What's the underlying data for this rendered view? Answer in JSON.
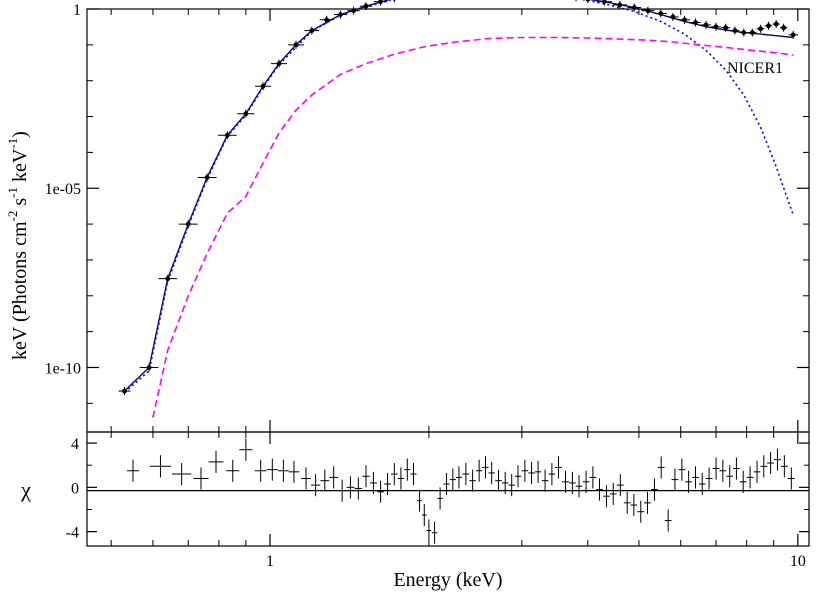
{
  "chart_data": [
    {
      "type": "scatter",
      "panel": "spectrum",
      "xscale": "log",
      "yscale": "log",
      "xlim": [
        0.45,
        10.5
      ],
      "ylim_log10": [
        -11.8,
        0
      ],
      "ylabel_main": "keV (Photons cm",
      "ylabel_exp1": "-2",
      "ylabel_s": " s",
      "ylabel_exp2": "-1",
      "ylabel_kev": " keV",
      "ylabel_exp3": "-1",
      "ylabel_close": ")",
      "yticks": [
        {
          "value": 1,
          "label": "1"
        },
        {
          "value": 1e-05,
          "label": "1e-05"
        },
        {
          "value": 1e-10,
          "label": "1e-10"
        }
      ],
      "annotation": "NICER1",
      "colors": {
        "data": "#000000",
        "model": "#0a0a6e",
        "comp_dotted": "#0000ff",
        "comp_dashed": "#ff00ff"
      },
      "series": [
        {
          "style": "data-with-errorbars",
          "points": [
            [
              0.53,
              2.2e-11
            ],
            [
              0.59,
              1e-10
            ],
            [
              0.64,
              3e-08
            ],
            [
              0.7,
              1e-06
            ],
            [
              0.76,
              2e-05
            ],
            [
              0.83,
              0.0003
            ],
            [
              0.9,
              0.0012
            ],
            [
              0.97,
              0.007
            ],
            [
              1.04,
              0.03
            ],
            [
              1.12,
              0.1
            ],
            [
              1.2,
              0.25
            ],
            [
              1.28,
              0.5
            ],
            [
              1.36,
              0.7
            ],
            [
              1.44,
              0.9
            ],
            [
              1.52,
              1.2
            ],
            [
              1.62,
              1.6
            ],
            [
              1.72,
              2.0
            ],
            [
              1.84,
              2.4
            ],
            [
              1.97,
              2.7
            ],
            [
              2.1,
              2.9
            ],
            [
              2.25,
              3.0
            ],
            [
              2.4,
              3.1
            ],
            [
              2.6,
              3.2
            ],
            [
              2.8,
              3.1
            ],
            [
              3.0,
              3.0
            ],
            [
              3.2,
              2.8
            ],
            [
              3.4,
              2.6
            ],
            [
              3.6,
              2.4
            ],
            [
              3.8,
              2.1
            ],
            [
              4.0,
              1.9
            ],
            [
              4.3,
              1.6
            ],
            [
              4.6,
              1.3
            ],
            [
              4.9,
              1.1
            ],
            [
              5.2,
              0.9
            ],
            [
              5.5,
              0.75
            ],
            [
              5.8,
              0.6
            ],
            [
              6.1,
              0.5
            ],
            [
              6.4,
              0.42
            ],
            [
              6.7,
              0.36
            ],
            [
              7.0,
              0.32
            ],
            [
              7.3,
              0.3
            ],
            [
              7.6,
              0.25
            ],
            [
              7.9,
              0.22
            ],
            [
              8.2,
              0.22
            ],
            [
              8.5,
              0.28
            ],
            [
              8.8,
              0.34
            ],
            [
              9.1,
              0.38
            ],
            [
              9.4,
              0.3
            ],
            [
              9.8,
              0.19
            ]
          ]
        },
        {
          "style": "model-solid",
          "points": [
            [
              0.53,
              2.2e-11
            ],
            [
              0.59,
              1e-10
            ],
            [
              0.64,
              3e-08
            ],
            [
              0.7,
              1e-06
            ],
            [
              0.76,
              2e-05
            ],
            [
              0.83,
              0.0003
            ],
            [
              0.9,
              0.0012
            ],
            [
              0.97,
              0.007
            ],
            [
              1.04,
              0.03
            ],
            [
              1.12,
              0.1
            ],
            [
              1.2,
              0.25
            ],
            [
              1.36,
              0.7
            ],
            [
              1.52,
              1.2
            ],
            [
              1.72,
              2.0
            ],
            [
              1.97,
              2.7
            ],
            [
              2.25,
              3.0
            ],
            [
              2.6,
              3.2
            ],
            [
              3.0,
              3.0
            ],
            [
              3.4,
              2.6
            ],
            [
              3.8,
              2.1
            ],
            [
              4.3,
              1.6
            ],
            [
              4.9,
              1.1
            ],
            [
              5.5,
              0.7
            ],
            [
              6.1,
              0.45
            ],
            [
              6.7,
              0.32
            ],
            [
              7.3,
              0.26
            ],
            [
              7.9,
              0.22
            ],
            [
              8.5,
              0.2
            ],
            [
              9.1,
              0.18
            ],
            [
              9.8,
              0.16
            ]
          ]
        },
        {
          "style": "component-dotted",
          "points": [
            [
              0.53,
              2e-11
            ],
            [
              0.59,
              8e-11
            ],
            [
              0.64,
              2.5e-08
            ],
            [
              0.7,
              9e-07
            ],
            [
              0.76,
              1.8e-05
            ],
            [
              0.83,
              0.00028
            ],
            [
              0.9,
              0.0011
            ],
            [
              0.97,
              0.0065
            ],
            [
              1.04,
              0.028
            ],
            [
              1.2,
              0.24
            ],
            [
              1.36,
              0.68
            ],
            [
              1.52,
              1.15
            ],
            [
              1.72,
              1.9
            ],
            [
              1.97,
              2.6
            ],
            [
              2.25,
              2.9
            ],
            [
              2.6,
              3.1
            ],
            [
              3.0,
              2.9
            ],
            [
              3.4,
              2.5
            ],
            [
              3.8,
              2.0
            ],
            [
              4.3,
              1.4
            ],
            [
              4.9,
              0.85
            ],
            [
              5.5,
              0.45
            ],
            [
              6.1,
              0.2
            ],
            [
              6.7,
              0.07
            ],
            [
              7.3,
              0.02
            ],
            [
              7.9,
              0.004
            ],
            [
              8.5,
              0.0005
            ],
            [
              9.1,
              4e-05
            ],
            [
              9.8,
              1.8e-06
            ]
          ]
        },
        {
          "style": "component-dashed",
          "points": [
            [
              0.6,
              4e-12
            ],
            [
              0.64,
              3e-10
            ],
            [
              0.7,
              1e-08
            ],
            [
              0.76,
              1.5e-07
            ],
            [
              0.83,
              2e-06
            ],
            [
              0.9,
              6e-06
            ],
            [
              0.97,
              5e-05
            ],
            [
              1.04,
              0.00035
            ],
            [
              1.12,
              0.0015
            ],
            [
              1.2,
              0.004
            ],
            [
              1.36,
              0.015
            ],
            [
              1.52,
              0.03
            ],
            [
              1.72,
              0.055
            ],
            [
              1.97,
              0.09
            ],
            [
              2.25,
              0.12
            ],
            [
              2.6,
              0.15
            ],
            [
              3.0,
              0.16
            ],
            [
              3.5,
              0.16
            ],
            [
              4.0,
              0.155
            ],
            [
              4.6,
              0.145
            ],
            [
              5.2,
              0.135
            ],
            [
              5.8,
              0.12
            ],
            [
              6.5,
              0.1
            ],
            [
              7.3,
              0.085
            ],
            [
              8.2,
              0.07
            ],
            [
              9.1,
              0.06
            ],
            [
              9.8,
              0.052
            ]
          ]
        }
      ]
    },
    {
      "type": "scatter",
      "panel": "residuals",
      "xscale": "log",
      "xlim": [
        0.45,
        10.5
      ],
      "ylim": [
        -5.3,
        5
      ],
      "ylabel": "χ",
      "xlabel": "Energy (keV)",
      "yticks": [
        {
          "value": 4,
          "label": "4"
        },
        {
          "value": 0,
          "label": "0"
        },
        {
          "value": -4,
          "label": "-4"
        }
      ],
      "xticks": [
        {
          "value": 1,
          "label": "1"
        },
        {
          "value": 10,
          "label": "10"
        }
      ],
      "zero_line": -0.3,
      "series": [
        {
          "style": "data-with-errorbars",
          "points": [
            [
              0.55,
              1.5
            ],
            [
              0.62,
              1.9
            ],
            [
              0.68,
              1.2
            ],
            [
              0.74,
              0.8
            ],
            [
              0.79,
              2.3
            ],
            [
              0.85,
              1.5
            ],
            [
              0.9,
              3.4
            ],
            [
              0.96,
              1.5
            ],
            [
              1.01,
              1.6
            ],
            [
              1.06,
              1.5
            ],
            [
              1.11,
              1.4
            ],
            [
              1.17,
              0.8
            ],
            [
              1.22,
              0.2
            ],
            [
              1.27,
              0.6
            ],
            [
              1.32,
              0.9
            ],
            [
              1.37,
              -0.3
            ],
            [
              1.42,
              0.0
            ],
            [
              1.47,
              -0.1
            ],
            [
              1.52,
              1.0
            ],
            [
              1.57,
              0.4
            ],
            [
              1.62,
              -0.4
            ],
            [
              1.67,
              0.3
            ],
            [
              1.72,
              1.2
            ],
            [
              1.77,
              0.8
            ],
            [
              1.82,
              1.6
            ],
            [
              1.87,
              1.2
            ],
            [
              1.92,
              -1.2
            ],
            [
              1.96,
              -2.5
            ],
            [
              2.0,
              -3.9
            ],
            [
              2.05,
              -4.1
            ],
            [
              2.1,
              -1.0
            ],
            [
              2.16,
              0.3
            ],
            [
              2.22,
              0.7
            ],
            [
              2.28,
              0.9
            ],
            [
              2.35,
              1.2
            ],
            [
              2.42,
              0.6
            ],
            [
              2.49,
              1.5
            ],
            [
              2.56,
              1.8
            ],
            [
              2.63,
              1.3
            ],
            [
              2.71,
              0.6
            ],
            [
              2.79,
              0.4
            ],
            [
              2.87,
              0.2
            ],
            [
              2.95,
              1.0
            ],
            [
              3.04,
              1.5
            ],
            [
              3.13,
              1.3
            ],
            [
              3.22,
              1.4
            ],
            [
              3.32,
              0.6
            ],
            [
              3.42,
              1.2
            ],
            [
              3.52,
              1.8
            ],
            [
              3.63,
              0.5
            ],
            [
              3.74,
              0.4
            ],
            [
              3.85,
              0.1
            ],
            [
              3.97,
              0.5
            ],
            [
              4.09,
              0.9
            ],
            [
              4.21,
              -0.2
            ],
            [
              4.34,
              -0.8
            ],
            [
              4.47,
              -0.6
            ],
            [
              4.61,
              0.2
            ],
            [
              4.75,
              -1.4
            ],
            [
              4.89,
              -1.6
            ],
            [
              5.04,
              -2.2
            ],
            [
              5.19,
              -1.4
            ],
            [
              5.35,
              -0.2
            ],
            [
              5.51,
              1.8
            ],
            [
              5.68,
              -3.0
            ],
            [
              5.85,
              0.7
            ],
            [
              6.03,
              1.6
            ],
            [
              6.21,
              0.5
            ],
            [
              6.4,
              0.9
            ],
            [
              6.59,
              0.3
            ],
            [
              6.79,
              0.8
            ],
            [
              7.0,
              1.7
            ],
            [
              7.21,
              1.5
            ],
            [
              7.43,
              1.0
            ],
            [
              7.65,
              1.7
            ],
            [
              7.88,
              0.5
            ],
            [
              8.12,
              0.9
            ],
            [
              8.37,
              1.4
            ],
            [
              8.62,
              1.9
            ],
            [
              8.88,
              2.2
            ],
            [
              9.15,
              2.5
            ],
            [
              9.43,
              1.9
            ],
            [
              9.72,
              0.8
            ]
          ]
        }
      ]
    }
  ]
}
